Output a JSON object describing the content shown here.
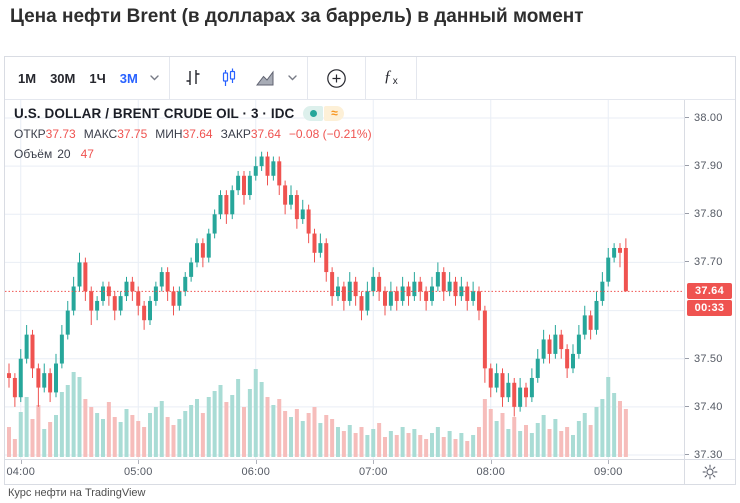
{
  "page": {
    "title": "Цена нефти Brent (в долларах за баррель) в данный момент",
    "caption": "Курс нефти на TradingView"
  },
  "toolbar": {
    "intervals": [
      {
        "label": "1М",
        "active": false
      },
      {
        "label": "30М",
        "active": false
      },
      {
        "label": "1Ч",
        "active": false
      },
      {
        "label": "3М",
        "active": true
      }
    ],
    "icons": {
      "interval_chevron": "chevron-down-icon",
      "bars": "bars-chart-type-icon",
      "candles": "candlesticks-chart-type-icon",
      "area": "area-chart-type-icon",
      "chart_type_chevron": "chevron-down-icon",
      "compare": "plus-circle-icon",
      "indicators": "fx-icon",
      "settings": "gear-icon"
    },
    "fx_f": "ƒ",
    "fx_x": "x"
  },
  "legend": {
    "symbol_title": "U.S. DOLLAR / BRENT CRUDE OIL · 3 · IDC",
    "badges": {
      "market_status_icon": "green-dot-icon",
      "delayed_glyph": "≈"
    },
    "ohlc": [
      {
        "label": "ОТКР",
        "value": "37.73"
      },
      {
        "label": "МАКС",
        "value": "37.75"
      },
      {
        "label": "МИН",
        "value": "37.64"
      },
      {
        "label": "ЗАКР",
        "value": "37.64"
      }
    ],
    "change": "−0.08 (−0.21%)",
    "volume_label": "Объём",
    "volume_ma": "20",
    "volume_value": "47"
  },
  "chart_data": {
    "type": "candlestick",
    "title": "U.S. DOLLAR / BRENT CRUDE OIL · 3 · IDC",
    "interval_minutes": 3,
    "grid_prices": [
      38.0,
      37.9,
      37.8,
      37.7,
      37.6,
      37.5,
      37.4,
      37.3
    ],
    "price_tick_labels": [
      "38.00",
      "37.90",
      "37.80",
      "37.70",
      "37.50",
      "37.40",
      "37.30"
    ],
    "ylim": [
      37.28,
      38.03
    ],
    "hour_labels": [
      "04:00",
      "05:00",
      "06:00",
      "07:00",
      "08:00",
      "09:00"
    ],
    "hour_indices": [
      2,
      22,
      42,
      62,
      82,
      102
    ],
    "last_price": 37.64,
    "last_price_label": "37.64",
    "countdown": "00:33",
    "colors": {
      "up": "#26a69a",
      "down": "#ef5350",
      "vol_up": "#a9dcd5",
      "vol_down": "#f6bdbb",
      "grid": "#e9eef5",
      "price_line": "#ef5350",
      "accent_blue": "#2962ff"
    },
    "candles_ohlc": [
      [
        37.47,
        37.49,
        37.44,
        37.46
      ],
      [
        37.46,
        37.47,
        37.4,
        37.42
      ],
      [
        37.42,
        37.52,
        37.41,
        37.5
      ],
      [
        37.5,
        37.57,
        37.49,
        37.55
      ],
      [
        37.55,
        37.56,
        37.46,
        37.48
      ],
      [
        37.48,
        37.49,
        37.4,
        37.44
      ],
      [
        37.44,
        37.49,
        37.43,
        37.47
      ],
      [
        37.47,
        37.48,
        37.41,
        37.43
      ],
      [
        37.43,
        37.51,
        37.42,
        37.49
      ],
      [
        37.49,
        37.57,
        37.48,
        37.55
      ],
      [
        37.55,
        37.62,
        37.54,
        37.6
      ],
      [
        37.6,
        37.67,
        37.59,
        37.65
      ],
      [
        37.65,
        37.72,
        37.64,
        37.7
      ],
      [
        37.7,
        37.71,
        37.62,
        37.64
      ],
      [
        37.64,
        37.65,
        37.57,
        37.6
      ],
      [
        37.6,
        37.63,
        37.58,
        37.62
      ],
      [
        37.62,
        37.66,
        37.61,
        37.65
      ],
      [
        37.65,
        37.66,
        37.61,
        37.63
      ],
      [
        37.63,
        37.64,
        37.58,
        37.6
      ],
      [
        37.6,
        37.64,
        37.59,
        37.63
      ],
      [
        37.63,
        37.67,
        37.62,
        37.66
      ],
      [
        37.66,
        37.67,
        37.62,
        37.64
      ],
      [
        37.64,
        37.65,
        37.59,
        37.61
      ],
      [
        37.61,
        37.62,
        37.56,
        37.58
      ],
      [
        37.58,
        37.63,
        37.57,
        37.62
      ],
      [
        37.62,
        37.66,
        37.61,
        37.65
      ],
      [
        37.65,
        37.69,
        37.64,
        37.68
      ],
      [
        37.68,
        37.69,
        37.62,
        37.64
      ],
      [
        37.64,
        37.65,
        37.59,
        37.61
      ],
      [
        37.61,
        37.65,
        37.6,
        37.64
      ],
      [
        37.64,
        37.68,
        37.63,
        37.67
      ],
      [
        37.67,
        37.71,
        37.66,
        37.7
      ],
      [
        37.7,
        37.75,
        37.69,
        37.74
      ],
      [
        37.74,
        37.75,
        37.69,
        37.71
      ],
      [
        37.71,
        37.77,
        37.7,
        37.76
      ],
      [
        37.76,
        37.81,
        37.75,
        37.8
      ],
      [
        37.8,
        37.85,
        37.79,
        37.84
      ],
      [
        37.84,
        37.85,
        37.78,
        37.8
      ],
      [
        37.8,
        37.86,
        37.79,
        37.85
      ],
      [
        37.85,
        37.89,
        37.84,
        37.88
      ],
      [
        37.88,
        37.89,
        37.82,
        37.84
      ],
      [
        37.84,
        37.89,
        37.83,
        37.88
      ],
      [
        37.88,
        37.92,
        37.87,
        37.9
      ],
      [
        37.9,
        37.93,
        37.89,
        37.92
      ],
      [
        37.92,
        37.93,
        37.86,
        37.88
      ],
      [
        37.88,
        37.92,
        37.87,
        37.91
      ],
      [
        37.91,
        37.92,
        37.84,
        37.86
      ],
      [
        37.86,
        37.87,
        37.8,
        37.82
      ],
      [
        37.82,
        37.86,
        37.81,
        37.84
      ],
      [
        37.84,
        37.85,
        37.77,
        37.79
      ],
      [
        37.79,
        37.83,
        37.78,
        37.81
      ],
      [
        37.81,
        37.82,
        37.74,
        37.76
      ],
      [
        37.76,
        37.77,
        37.7,
        37.72
      ],
      [
        37.72,
        37.76,
        37.71,
        37.74
      ],
      [
        37.74,
        37.75,
        37.66,
        37.68
      ],
      [
        37.68,
        37.69,
        37.61,
        37.63
      ],
      [
        37.63,
        37.67,
        37.62,
        37.65
      ],
      [
        37.65,
        37.66,
        37.6,
        37.62
      ],
      [
        37.62,
        37.68,
        37.61,
        37.66
      ],
      [
        37.66,
        37.67,
        37.61,
        37.63
      ],
      [
        37.63,
        37.64,
        37.58,
        37.6
      ],
      [
        37.6,
        37.66,
        37.59,
        37.64
      ],
      [
        37.64,
        37.69,
        37.63,
        37.67
      ],
      [
        37.67,
        37.68,
        37.62,
        37.64
      ],
      [
        37.64,
        37.65,
        37.59,
        37.61
      ],
      [
        37.61,
        37.66,
        37.6,
        37.64
      ],
      [
        37.64,
        37.65,
        37.6,
        37.62
      ],
      [
        37.62,
        37.67,
        37.61,
        37.65
      ],
      [
        37.65,
        37.66,
        37.61,
        37.63
      ],
      [
        37.63,
        37.68,
        37.62,
        37.66
      ],
      [
        37.66,
        37.67,
        37.62,
        37.64
      ],
      [
        37.64,
        37.65,
        37.6,
        37.62
      ],
      [
        37.62,
        37.67,
        37.61,
        37.65
      ],
      [
        37.65,
        37.7,
        37.64,
        37.68
      ],
      [
        37.68,
        37.69,
        37.62,
        37.64
      ],
      [
        37.64,
        37.68,
        37.63,
        37.66
      ],
      [
        37.66,
        37.67,
        37.61,
        37.63
      ],
      [
        37.63,
        37.67,
        37.62,
        37.65
      ],
      [
        37.65,
        37.66,
        37.6,
        37.62
      ],
      [
        37.62,
        37.66,
        37.61,
        37.64
      ],
      [
        37.64,
        37.65,
        37.58,
        37.6
      ],
      [
        37.6,
        37.61,
        37.45,
        37.48
      ],
      [
        37.48,
        37.49,
        37.42,
        37.44
      ],
      [
        37.44,
        37.49,
        37.43,
        37.47
      ],
      [
        37.47,
        37.48,
        37.4,
        37.42
      ],
      [
        37.42,
        37.47,
        37.41,
        37.45
      ],
      [
        37.45,
        37.46,
        37.38,
        37.4
      ],
      [
        37.4,
        37.46,
        37.39,
        37.44
      ],
      [
        37.44,
        37.45,
        37.4,
        37.42
      ],
      [
        37.42,
        37.48,
        37.41,
        37.46
      ],
      [
        37.46,
        37.52,
        37.45,
        37.5
      ],
      [
        37.5,
        37.56,
        37.49,
        37.54
      ],
      [
        37.54,
        37.55,
        37.49,
        37.51
      ],
      [
        37.51,
        37.57,
        37.5,
        37.55
      ],
      [
        37.55,
        37.56,
        37.5,
        37.52
      ],
      [
        37.52,
        37.53,
        37.46,
        37.48
      ],
      [
        37.48,
        37.53,
        37.47,
        37.51
      ],
      [
        37.51,
        37.57,
        37.5,
        37.55
      ],
      [
        37.55,
        37.61,
        37.54,
        37.59
      ],
      [
        37.59,
        37.6,
        37.54,
        37.56
      ],
      [
        37.56,
        37.64,
        37.55,
        37.62
      ],
      [
        37.62,
        37.68,
        37.61,
        37.66
      ],
      [
        37.66,
        37.73,
        37.65,
        37.71
      ],
      [
        37.71,
        37.74,
        37.7,
        37.73
      ],
      [
        37.73,
        37.74,
        37.69,
        37.72
      ],
      [
        37.73,
        37.75,
        37.64,
        37.64
      ]
    ],
    "volume_rel": [
      30,
      18,
      45,
      60,
      38,
      52,
      28,
      35,
      42,
      65,
      72,
      85,
      80,
      58,
      50,
      44,
      38,
      55,
      40,
      35,
      48,
      42,
      36,
      30,
      44,
      50,
      56,
      40,
      32,
      38,
      46,
      52,
      58,
      44,
      60,
      66,
      72,
      55,
      62,
      78,
      50,
      68,
      88,
      75,
      60,
      52,
      58,
      46,
      40,
      48,
      36,
      44,
      50,
      34,
      42,
      38,
      30,
      26,
      32,
      24,
      30,
      22,
      28,
      34,
      20,
      26,
      22,
      30,
      24,
      28,
      22,
      18,
      24,
      30,
      20,
      26,
      18,
      24,
      16,
      22,
      30,
      58,
      48,
      36,
      44,
      28,
      40,
      26,
      32,
      24,
      34,
      42,
      28,
      38,
      26,
      30,
      22,
      36,
      44,
      32,
      50,
      58,
      80,
      64,
      56,
      48
    ]
  }
}
